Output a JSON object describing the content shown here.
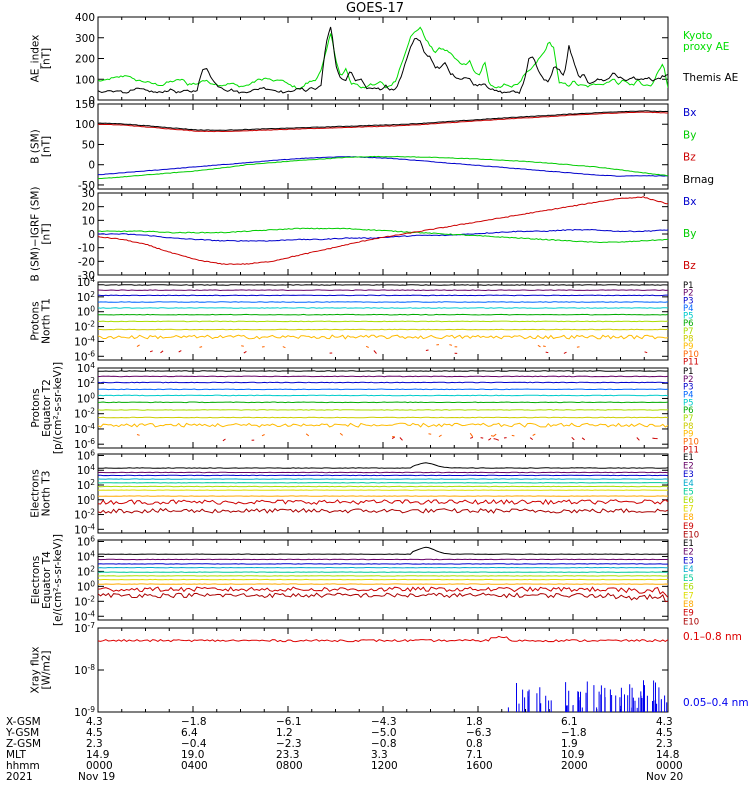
{
  "page_title": "GOES-17",
  "chart_data": [
    {
      "type": "line",
      "ylabel": [
        "AE_index",
        "[nT]"
      ],
      "ylim": [
        0,
        400
      ],
      "yticks": [
        "400",
        "300",
        "200",
        "100",
        "0"
      ],
      "series": [
        {
          "name": "Kyoto proxy AE",
          "color": "#00dd00",
          "values": [
            95,
            90,
            100,
            105,
            110,
            115,
            120,
            100,
            95,
            90,
            85,
            80,
            75,
            70,
            85,
            90,
            95,
            100,
            75,
            80,
            75,
            95,
            90,
            80,
            75,
            70,
            75,
            80,
            70,
            65,
            70,
            80,
            95,
            100,
            105,
            95,
            90,
            100,
            80,
            70,
            60,
            55,
            80,
            90,
            100,
            140,
            230,
            330,
            190,
            110,
            150,
            80,
            80,
            60,
            60,
            80,
            70,
            90,
            60,
            70,
            90,
            160,
            230,
            300,
            330,
            350,
            300,
            260,
            230,
            250,
            240,
            230,
            200,
            180,
            170,
            190,
            130,
            120,
            190,
            70,
            60,
            60,
            80,
            60,
            75,
            80,
            120,
            140,
            165,
            200,
            230,
            280,
            250,
            80,
            80,
            70,
            90,
            70,
            70,
            65,
            75,
            80,
            75,
            90,
            100,
            80,
            95,
            80,
            70,
            100,
            70,
            70,
            75,
            140,
            175,
            60
          ]
        },
        {
          "name": "Themis AE",
          "color": "#000000",
          "values": [
            40,
            35,
            45,
            40,
            50,
            35,
            40,
            45,
            55,
            50,
            45,
            40,
            35,
            40,
            45,
            50,
            35,
            40,
            45,
            40,
            50,
            140,
            155,
            100,
            70,
            60,
            45,
            50,
            40,
            35,
            40,
            45,
            50,
            60,
            55,
            50,
            45,
            40,
            35,
            45,
            50,
            55,
            45,
            60,
            50,
            75,
            270,
            360,
            165,
            100,
            95,
            140,
            90,
            100,
            60,
            55,
            60,
            50,
            70,
            50,
            50,
            100,
            180,
            250,
            300,
            280,
            220,
            210,
            160,
            150,
            180,
            130,
            115,
            100,
            110,
            100,
            70,
            75,
            80,
            55,
            45,
            40,
            35,
            40,
            40,
            35,
            90,
            210,
            200,
            130,
            95,
            90,
            160,
            150,
            110,
            260,
            180,
            110,
            120,
            80,
            90,
            100,
            95,
            100,
            135,
            110,
            100,
            95,
            110,
            100,
            95,
            110,
            90,
            100,
            115,
            120
          ]
        }
      ],
      "legend": [
        "Kyoto",
        "proxy AE",
        "Themis AE"
      ]
    },
    {
      "type": "line",
      "ylabel": [
        "B (SM)",
        "[nT]"
      ],
      "ylim": [
        -60,
        150
      ],
      "yticks": [
        "150",
        "100",
        "50",
        "0",
        "-50"
      ],
      "series": [
        {
          "name": "Bx",
          "color": "#0000cc",
          "values": [
            -25,
            -20,
            -15,
            -10,
            -5,
            0,
            5,
            10,
            15,
            18,
            20,
            18,
            15,
            10,
            5,
            0,
            -5,
            -10,
            -15,
            -20,
            -25,
            -28,
            -27,
            -28
          ]
        },
        {
          "name": "By",
          "color": "#00cc00",
          "values": [
            -35,
            -30,
            -25,
            -20,
            -15,
            -8,
            0,
            5,
            10,
            14,
            18,
            20,
            20,
            19,
            17,
            15,
            12,
            9,
            5,
            0,
            -5,
            -12,
            -20,
            -27
          ]
        },
        {
          "name": "Bz",
          "color": "#cc0000",
          "values": [
            100,
            98,
            93,
            88,
            83,
            82,
            84,
            86,
            88,
            90,
            92,
            94,
            96,
            99,
            103,
            107,
            111,
            115,
            118,
            122,
            125,
            128,
            130,
            128
          ]
        },
        {
          "name": "Brnag",
          "color": "#000000",
          "values": [
            103,
            101,
            96,
            91,
            86,
            85,
            87,
            89,
            91,
            93,
            95,
            97,
            99,
            102,
            106,
            110,
            114,
            118,
            121,
            125,
            128,
            131,
            133,
            131
          ]
        }
      ],
      "legend": [
        "Bx",
        "By",
        "Bz",
        "Brnag"
      ]
    },
    {
      "type": "line",
      "ylabel": [
        "B (SM)−IGRF (SM)",
        "[nT]"
      ],
      "ylim": [
        -30,
        30
      ],
      "yticks": [
        "30",
        "20",
        "10",
        "0",
        "-10",
        "-20",
        "-30"
      ],
      "series": [
        {
          "name": "Bx",
          "color": "#0000cc",
          "values": [
            0,
            0,
            -1,
            -3,
            -4,
            -5,
            -5,
            -5,
            -4,
            -4,
            -3,
            -3,
            -2,
            -1,
            -1,
            0,
            1,
            2,
            2,
            3,
            3,
            2,
            2,
            3
          ]
        },
        {
          "name": "By",
          "color": "#00cc00",
          "values": [
            2,
            2,
            2,
            1,
            1,
            1,
            2,
            3,
            4,
            4,
            4,
            3,
            2,
            1,
            0,
            -1,
            -2,
            -3,
            -4,
            -5,
            -6,
            -6,
            -5,
            -4
          ]
        },
        {
          "name": "Bz",
          "color": "#cc0000",
          "values": [
            -2,
            -4,
            -8,
            -14,
            -19,
            -22,
            -22,
            -20,
            -16,
            -12,
            -8,
            -4,
            -1,
            2,
            5,
            8,
            11,
            14,
            17,
            20,
            23,
            26,
            27,
            22
          ]
        }
      ],
      "legend": [
        "Bx",
        "By",
        "Bz"
      ]
    },
    {
      "type": "line",
      "ylabel": [
        "Protons",
        "North T1"
      ],
      "yscale": "log",
      "ylim": [
        -6.5,
        4
      ],
      "yticks": [
        "10^4",
        "10^2",
        "10^0",
        "10^-2",
        "10^-4",
        "10^-6"
      ],
      "series": [
        {
          "name": "P1",
          "color": "#000000",
          "level_log10": 3.6
        },
        {
          "name": "P2",
          "color": "#660066",
          "level_log10": 2.9
        },
        {
          "name": "P3",
          "color": "#0000cc",
          "level_log10": 2.2
        },
        {
          "name": "P4",
          "color": "#0066ff",
          "level_log10": 1.3
        },
        {
          "name": "P5",
          "color": "#00cccc",
          "level_log10": 0.5
        },
        {
          "name": "P6",
          "color": "#00aa00",
          "level_log10": -0.4
        },
        {
          "name": "P7",
          "color": "#aadd00",
          "level_log10": -1.3
        },
        {
          "name": "P8",
          "color": "#cccc00",
          "level_log10": -2.4
        },
        {
          "name": "P9",
          "color": "#ffbb00",
          "level_log10": -3.4
        },
        {
          "name": "P10",
          "color": "#ff6600",
          "level_log10": -4.6
        },
        {
          "name": "P11",
          "color": "#cc0000",
          "level_log10": -5.4
        }
      ],
      "legend": [
        "P1",
        "P2",
        "P3",
        "P4",
        "P5",
        "P6",
        "P7",
        "P8",
        "P9",
        "P10",
        "P11"
      ]
    },
    {
      "type": "line",
      "ylabel": [
        "Protons",
        "Equator T2",
        "[p/(cm²-s-sr-keV)]"
      ],
      "yscale": "log",
      "ylim": [
        -6.5,
        4
      ],
      "yticks": [
        "10^4",
        "10^2",
        "10^0",
        "10^-2",
        "10^-4",
        "10^-6"
      ],
      "series": [
        {
          "name": "P1",
          "color": "#000000",
          "level_log10": 3.6
        },
        {
          "name": "P2",
          "color": "#660066",
          "level_log10": 2.9
        },
        {
          "name": "P3",
          "color": "#0000cc",
          "level_log10": 2.1
        },
        {
          "name": "P4",
          "color": "#0066ff",
          "level_log10": 1.2
        },
        {
          "name": "P5",
          "color": "#00cccc",
          "level_log10": 0.4
        },
        {
          "name": "P6",
          "color": "#00aa00",
          "level_log10": -0.5
        },
        {
          "name": "P7",
          "color": "#aadd00",
          "level_log10": -1.5
        },
        {
          "name": "P8",
          "color": "#cccc00",
          "level_log10": -2.5
        },
        {
          "name": "P9",
          "color": "#ffbb00",
          "level_log10": -3.5
        },
        {
          "name": "P10",
          "color": "#ff6600",
          "level_log10": -4.8
        },
        {
          "name": "P11",
          "color": "#cc0000",
          "level_log10": -5.3
        }
      ],
      "legend": [
        "P1",
        "P2",
        "P3",
        "P4",
        "P5",
        "P6",
        "P7",
        "P8",
        "P9",
        "P10",
        "P11"
      ]
    },
    {
      "type": "line",
      "ylabel": [
        "Electrons",
        "North T3"
      ],
      "yscale": "log",
      "ylim": [
        -4.5,
        6.2
      ],
      "yticks": [
        "10^6",
        "10^4",
        "10^2",
        "10^0",
        "10^-2",
        "10^-4"
      ],
      "series": [
        {
          "name": "E1",
          "color": "#000000",
          "level_log10": 4.3
        },
        {
          "name": "E2",
          "color": "#660066",
          "level_log10": 3.7
        },
        {
          "name": "E3",
          "color": "#0000cc",
          "level_log10": 3.3
        },
        {
          "name": "E4",
          "color": "#00aacc",
          "level_log10": 2.8
        },
        {
          "name": "E5",
          "color": "#00cc99",
          "level_log10": 2.3
        },
        {
          "name": "E6",
          "color": "#aadd00",
          "level_log10": 1.8
        },
        {
          "name": "E7",
          "color": "#dddd00",
          "level_log10": 1.3
        },
        {
          "name": "E8",
          "color": "#ffaa00",
          "level_log10": 0.5
        },
        {
          "name": "E9",
          "color": "#cc0000",
          "level_log10": -0.3
        },
        {
          "name": "E10",
          "color": "#aa0000",
          "level_log10": -1.5
        }
      ],
      "legend": [
        "E1",
        "E2",
        "E3",
        "E4",
        "E5",
        "E6",
        "E7",
        "E8",
        "E9",
        "E10"
      ]
    },
    {
      "type": "line",
      "ylabel": [
        "Electrons",
        "Equator T4",
        "[e/(cm²-s-sr-keV)]"
      ],
      "yscale": "log",
      "ylim": [
        -4.5,
        6.2
      ],
      "yticks": [
        "10^6",
        "10^4",
        "10^2",
        "10^0",
        "10^-2",
        "10^-4"
      ],
      "series": [
        {
          "name": "E1",
          "color": "#000000",
          "level_log10": 4.3
        },
        {
          "name": "E2",
          "color": "#660066",
          "level_log10": 3.6
        },
        {
          "name": "E3",
          "color": "#0000cc",
          "level_log10": 3.0
        },
        {
          "name": "E4",
          "color": "#00aacc",
          "level_log10": 2.5
        },
        {
          "name": "E5",
          "color": "#00cc99",
          "level_log10": 1.9
        },
        {
          "name": "E6",
          "color": "#aadd00",
          "level_log10": 1.4
        },
        {
          "name": "E7",
          "color": "#dddd00",
          "level_log10": 0.9
        },
        {
          "name": "E8",
          "color": "#ffaa00",
          "level_log10": 0.3
        },
        {
          "name": "E9",
          "color": "#cc0000",
          "level_log10": -0.4
        },
        {
          "name": "E10",
          "color": "#aa0000",
          "level_log10": -1.2
        }
      ],
      "legend": [
        "E1",
        "E2",
        "E3",
        "E4",
        "E5",
        "E6",
        "E7",
        "E8",
        "E9",
        "E10"
      ]
    },
    {
      "type": "line",
      "ylabel": [
        "Xray flux",
        "[W/m2]"
      ],
      "yscale": "log",
      "ylim": [
        -9,
        -7
      ],
      "yticks": [
        "10^-7",
        "10^-8",
        "10^-9"
      ],
      "series": [
        {
          "name": "0.1–0.8 nm",
          "color": "#dd0000",
          "level_log10": -7.3
        },
        {
          "name": "0.05–0.4 nm",
          "color": "#0000ee",
          "level_log10": -9.0
        }
      ],
      "legend": [
        "0.1–0.8 nm",
        "0.05–0.4 nm"
      ]
    }
  ],
  "footer": {
    "row_labels": [
      "X-GSM",
      "Y-GSM",
      "Z-GSM",
      "MLT",
      "hhmm",
      "2021"
    ],
    "columns": [
      [
        "4.3",
        "4.5",
        "2.3",
        "14.9",
        "0000",
        "Nov 19"
      ],
      [
        "−1.8",
        "6.4",
        "−0.4",
        "19.0",
        "0400",
        ""
      ],
      [
        "−6.1",
        "1.2",
        "−2.3",
        "23.3",
        "0800",
        ""
      ],
      [
        "−4.3",
        "−5.0",
        "−0.8",
        "3.3",
        "1200",
        ""
      ],
      [
        "1.8",
        "−6.3",
        "0.8",
        "7.1",
        "1600",
        ""
      ],
      [
        "6.1",
        "−1.8",
        "1.9",
        "10.9",
        "2000",
        ""
      ],
      [
        "4.3",
        "4.5",
        "2.3",
        "14.8",
        "0000",
        "Nov 20"
      ]
    ]
  }
}
